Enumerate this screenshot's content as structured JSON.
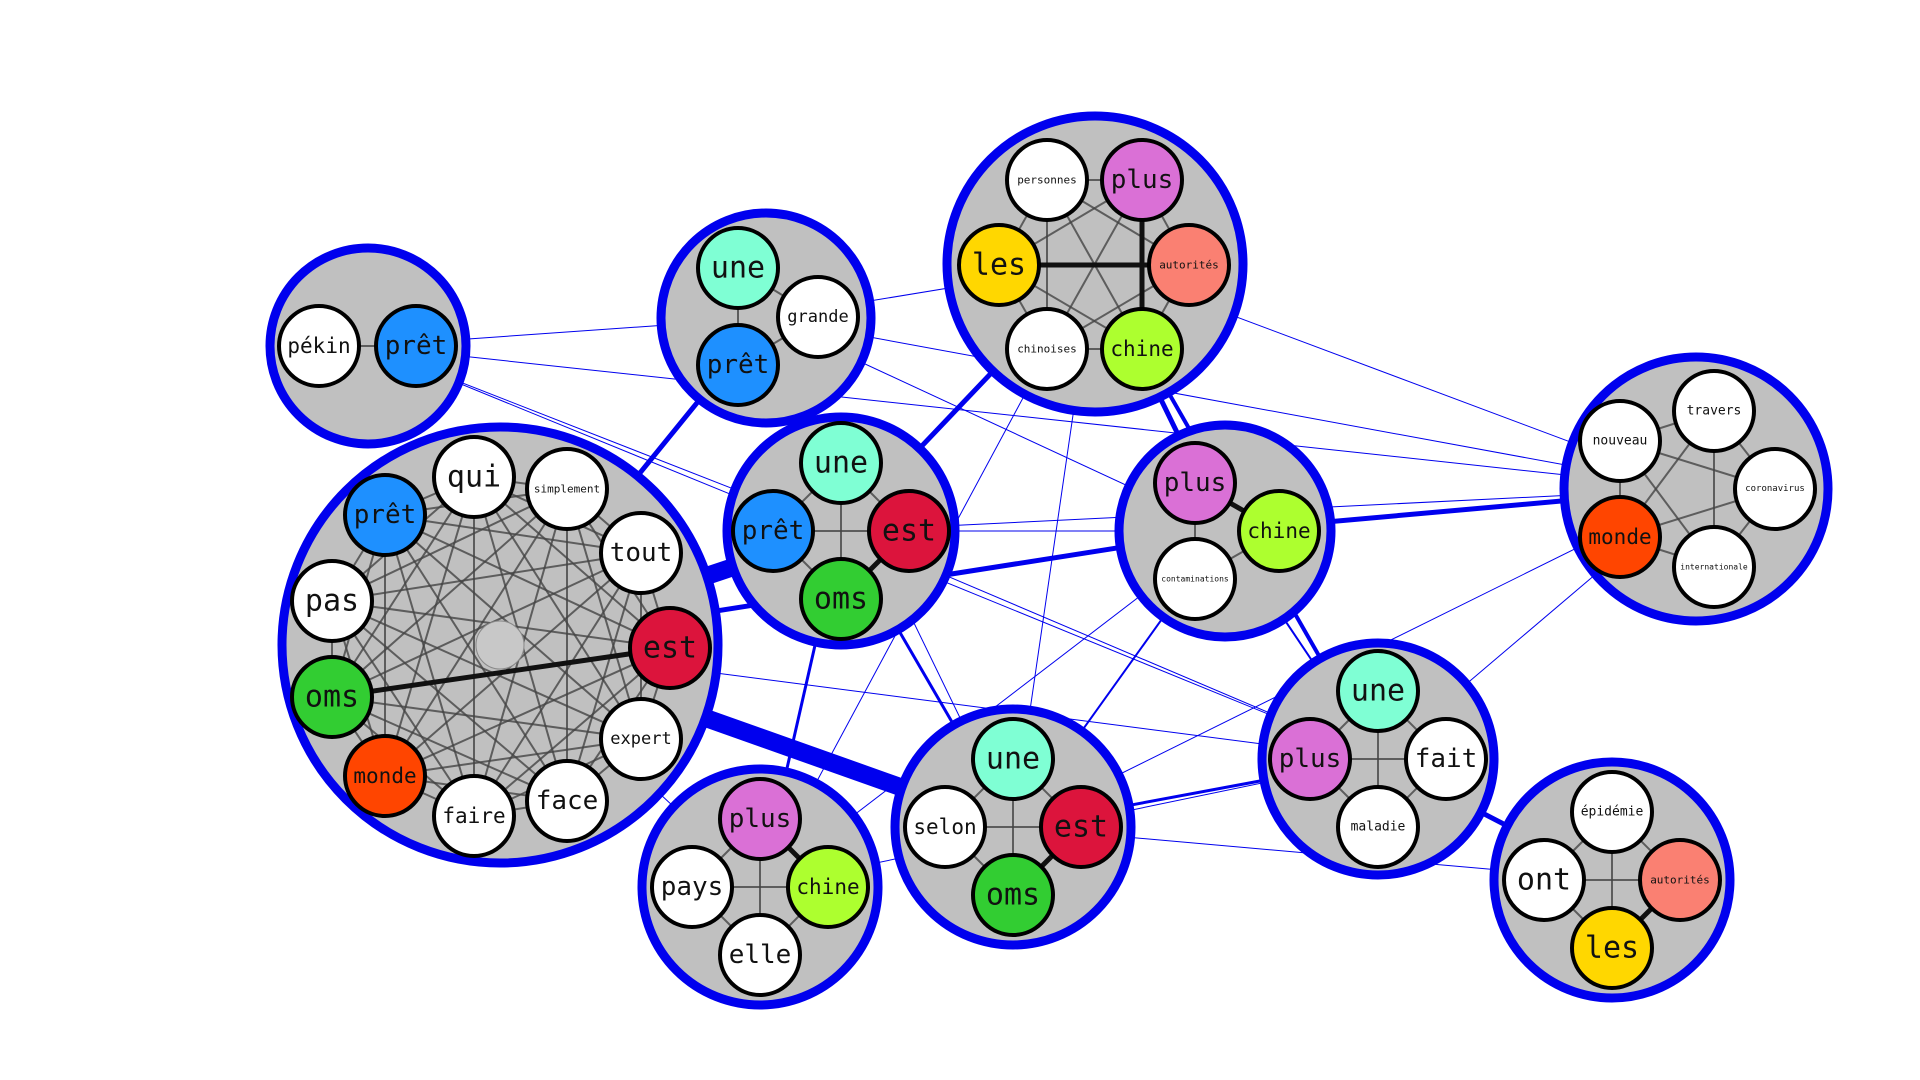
{
  "colors": {
    "une": "#7fffd4",
    "prêt": "#1e90ff",
    "est": "#dc143c",
    "oms": "#32cd32",
    "monde": "#ff4500",
    "plus": "#da70d6",
    "chine": "#adff2f",
    "les": "#ffd700",
    "autorités": "#fa8072",
    "default": "#ffffff",
    "cluster_fill": "#c0c0c0",
    "cluster_border": "#0000ee",
    "inner_edge": "#444444"
  },
  "clusters": [
    {
      "id": "c-pekin",
      "words": [
        "pékin",
        "prêt"
      ]
    },
    {
      "id": "c-une-pret-grande",
      "words": [
        "une",
        "grande",
        "prêt"
      ]
    },
    {
      "id": "c-les-autorites",
      "words": [
        "personnes",
        "plus",
        "autorités",
        "chine",
        "chinoises",
        "les"
      ]
    },
    {
      "id": "c-big",
      "words": [
        "qui",
        "simplement",
        "tout",
        "est",
        "expert",
        "face",
        "faire",
        "monde",
        "oms",
        "pas",
        "prêt"
      ]
    },
    {
      "id": "c-une-est-oms-pret",
      "words": [
        "une",
        "est",
        "oms",
        "prêt"
      ]
    },
    {
      "id": "c-plus-chine-contam",
      "words": [
        "plus",
        "chine",
        "contaminations"
      ]
    },
    {
      "id": "c-travers",
      "words": [
        "travers",
        "coronavirus",
        "internationale",
        "monde",
        "nouveau"
      ]
    },
    {
      "id": "c-une-plus-fait",
      "words": [
        "une",
        "fait",
        "maladie",
        "plus"
      ]
    },
    {
      "id": "c-plus-chine-pays",
      "words": [
        "plus",
        "chine",
        "elle",
        "pays"
      ]
    },
    {
      "id": "c-une-est-oms-selon",
      "words": [
        "une",
        "est",
        "oms",
        "selon"
      ]
    },
    {
      "id": "c-epidemie",
      "words": [
        "épidémie",
        "autorités",
        "les",
        "ont"
      ]
    }
  ]
}
